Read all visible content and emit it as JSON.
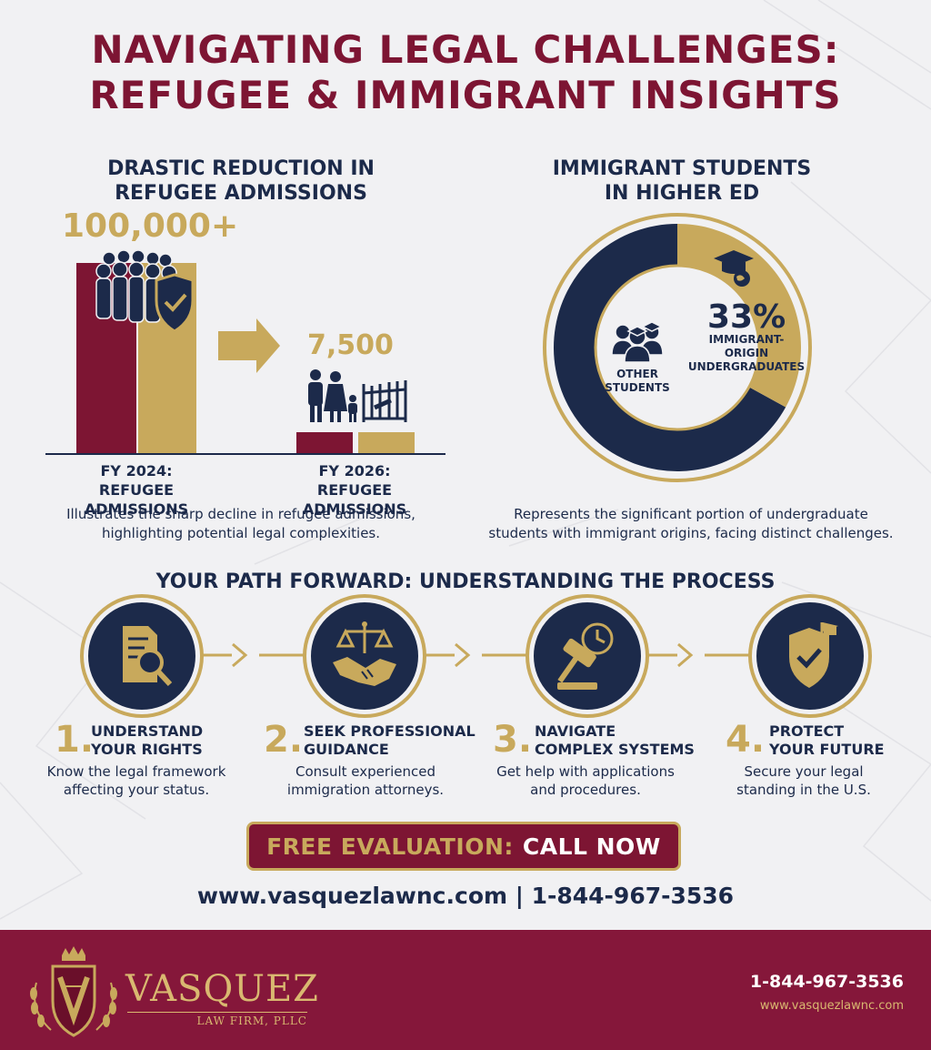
{
  "title": {
    "line1": "NAVIGATING LEGAL CHALLENGES:",
    "line2": "REFUGEE & IMMIGRANT INSIGHTS"
  },
  "admissions": {
    "heading_line1": "DRASTIC REDUCTION IN",
    "heading_line2": "REFUGEE ADMISSIONS",
    "fy2024_value": "100,000+",
    "fy2024_label_line1": "FY 2024:",
    "fy2024_label_line2": "REFUGEE ADMISSIONS",
    "fy2026_value": "7,500",
    "fy2026_label_line1": "FY 2026:",
    "fy2026_label_line2": "REFUGEE ADMISSIONS",
    "desc_line1": "Illustrates the sharp decline in refugee admissions,",
    "desc_line2": "highlighting potential legal complexities."
  },
  "students": {
    "heading_line1": "IMMIGRANT STUDENTS",
    "heading_line2": "IN HIGHER ED",
    "percent_label": "33%",
    "percent_value": 0.33,
    "immigrant_line1": "IMMIGRANT-ORIGIN",
    "immigrant_line2": "UNDERGRADUATES",
    "other_line1": "OTHER",
    "other_line2": "STUDENTS",
    "desc_line1": "Represents the significant portion of undergraduate",
    "desc_line2": "students with immigrant origins, facing distinct challenges."
  },
  "process": {
    "heading": "YOUR PATH FORWARD: UNDERSTANDING THE PROCESS",
    "steps": [
      {
        "num": "1.",
        "title_line1": "UNDERSTAND",
        "title_line2": "YOUR RIGHTS",
        "desc_line1": "Know the legal framework",
        "desc_line2": "affecting your status.",
        "icon": "document-magnifier-icon"
      },
      {
        "num": "2.",
        "title_line1": "SEEK PROFESSIONAL",
        "title_line2": "GUIDANCE",
        "desc_line1": "Consult experienced",
        "desc_line2": "immigration attorneys.",
        "icon": "scales-handshake-icon"
      },
      {
        "num": "3.",
        "title_line1": "NAVIGATE",
        "title_line2": "COMPLEX SYSTEMS",
        "desc_line1": "Get help with applications",
        "desc_line2": "and procedures.",
        "icon": "gavel-clock-icon"
      },
      {
        "num": "4.",
        "title_line1": "PROTECT",
        "title_line2": "YOUR FUTURE",
        "desc_line1": "Secure your legal",
        "desc_line2": "standing in the U.S.",
        "icon": "shield-flag-icon"
      }
    ]
  },
  "cta": {
    "part1": "FREE EVALUATION:",
    "part2": "CALL NOW"
  },
  "contact": {
    "line": "www.vasquezlawnc.com | 1-844-967-3536"
  },
  "footer": {
    "logo_name": "VASQUEZ",
    "logo_sub": "LAW FIRM, PLLC",
    "phone": "1-844-967-3536",
    "website": "www.vasquezlawnc.com"
  },
  "colors": {
    "maroon": "#7d1533",
    "navy": "#1c2a4a",
    "gold": "#c8a95c",
    "background": "#f1f1f3"
  }
}
